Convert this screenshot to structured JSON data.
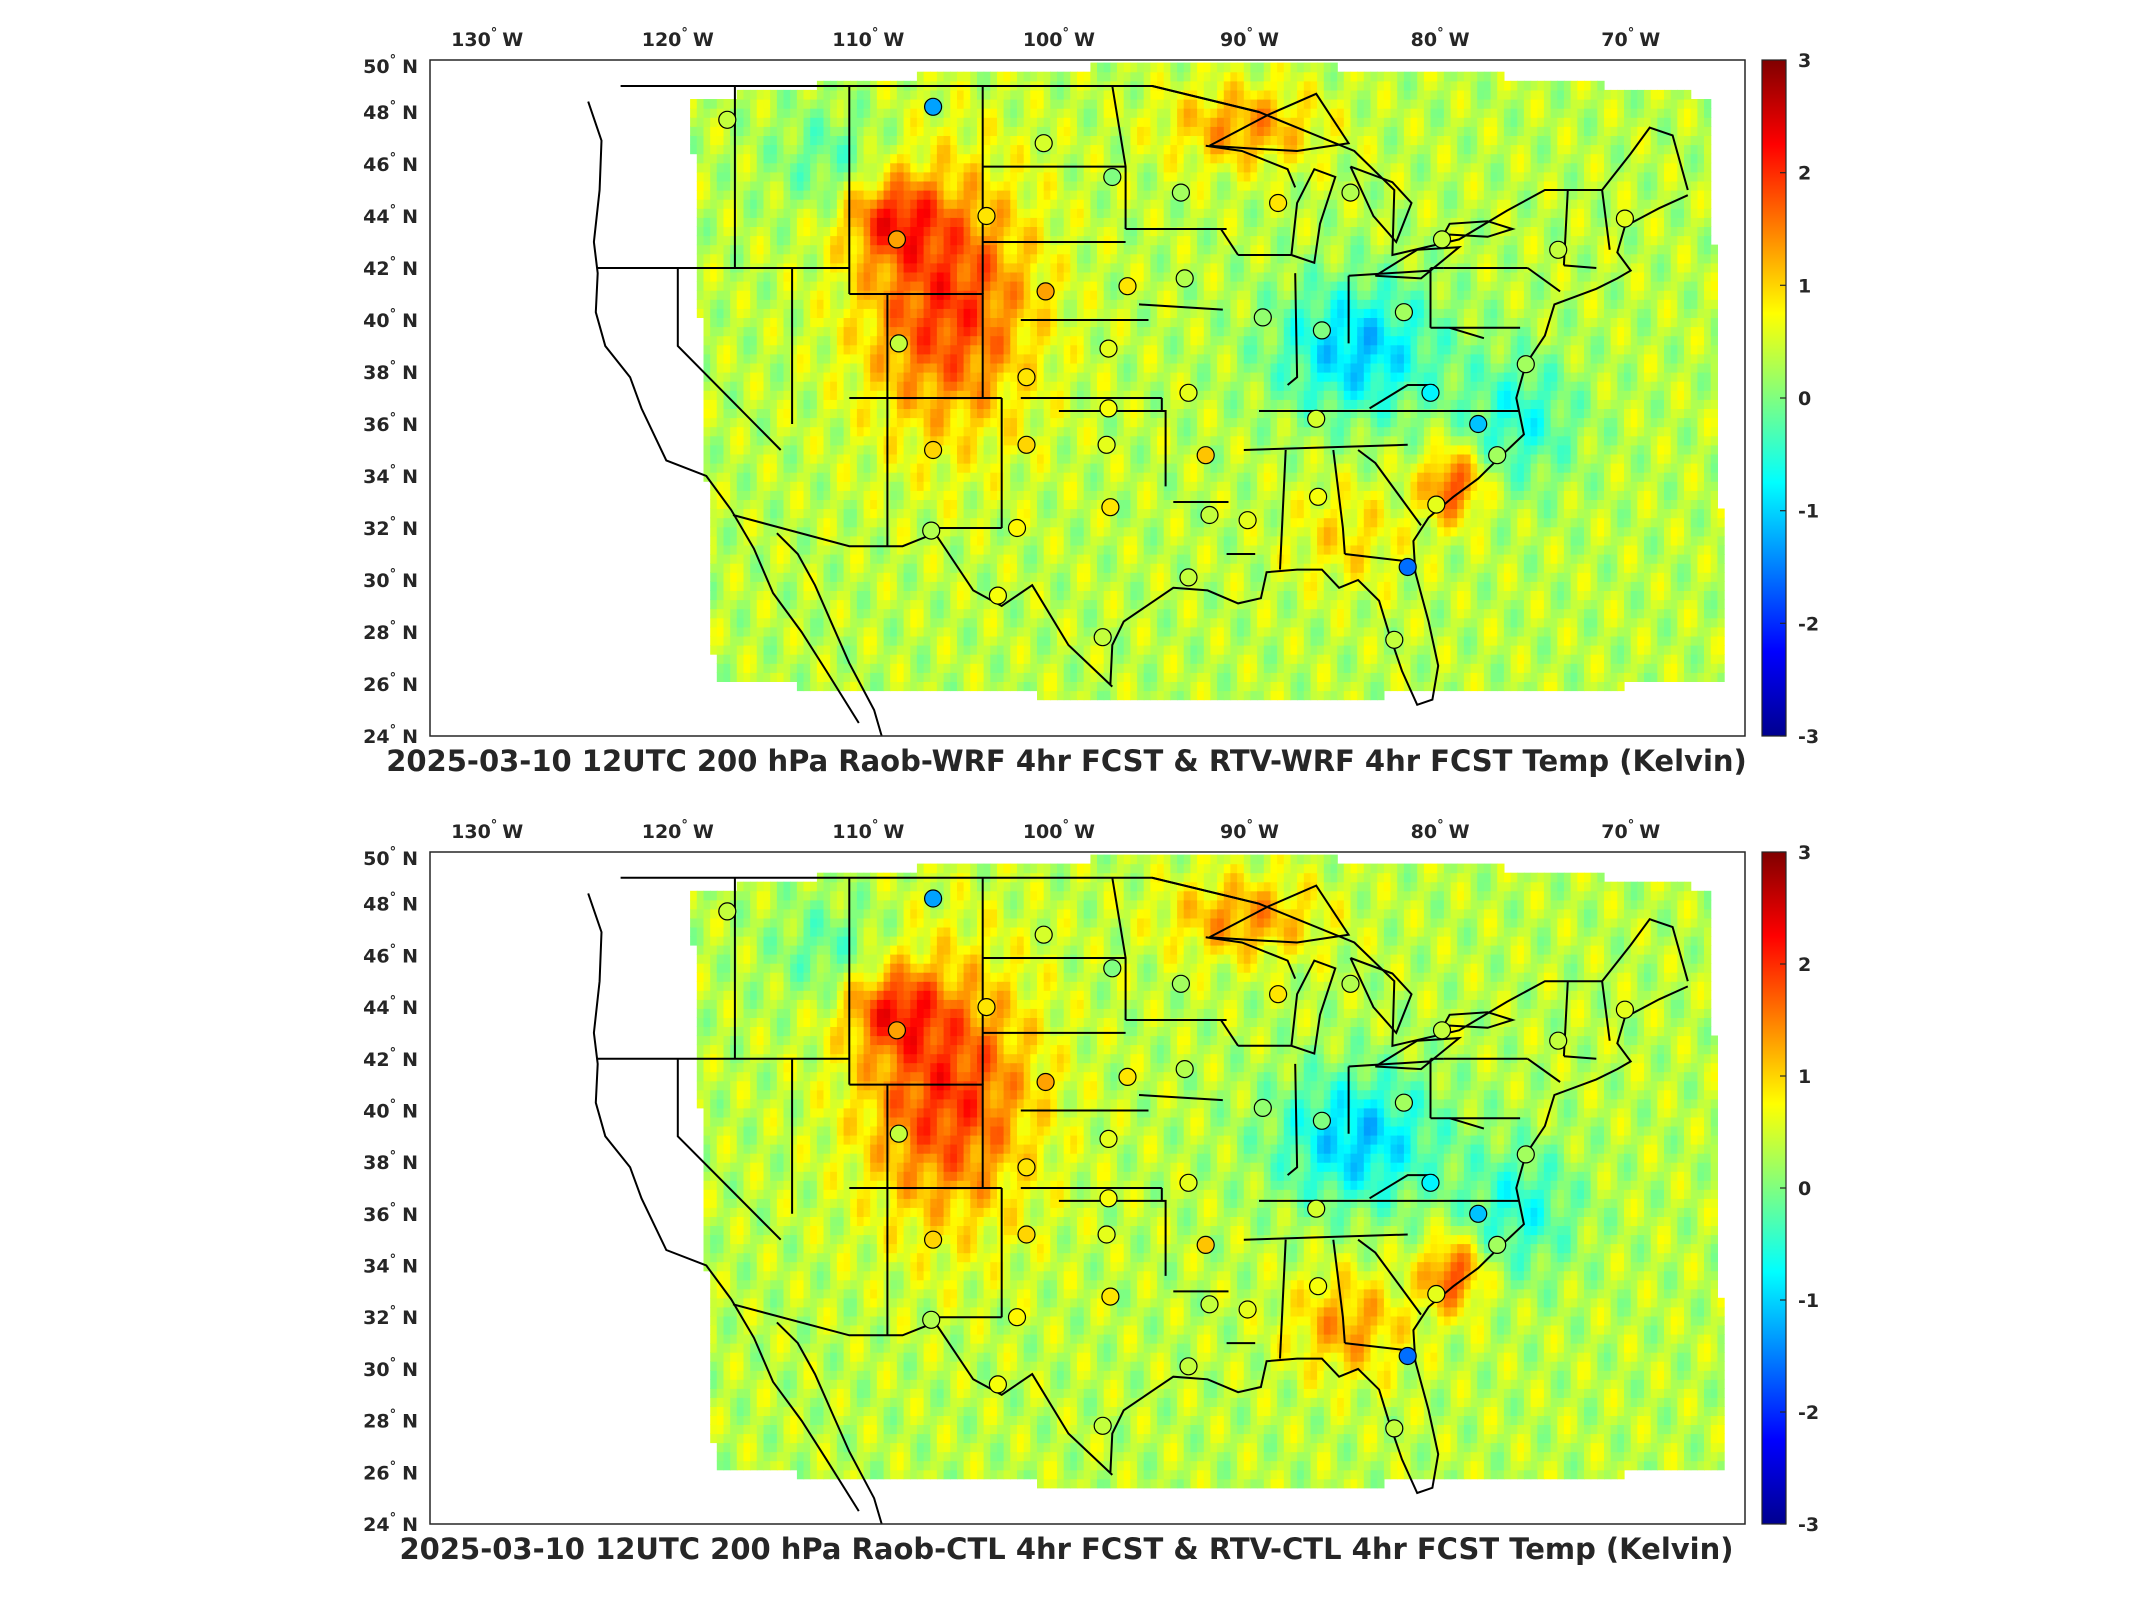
{
  "figure": {
    "panels": [
      {
        "title": "2025-03-10 12UTC 200 hPa Raob-WRF 4hr FCST & RTV-WRF 4hr FCST Temp (Kelvin)",
        "stations": [
          {
            "lon": -117.4,
            "lat": 47.7,
            "v": 0.4
          },
          {
            "lon": -106.6,
            "lat": 48.2,
            "v": -1.3
          },
          {
            "lon": -100.8,
            "lat": 46.8,
            "v": 0.5
          },
          {
            "lon": -97.2,
            "lat": 45.5,
            "v": 0.0
          },
          {
            "lon": -93.6,
            "lat": 44.9,
            "v": 0.2
          },
          {
            "lon": -88.5,
            "lat": 44.5,
            "v": 0.9
          },
          {
            "lon": -84.7,
            "lat": 44.9,
            "v": 0.3
          },
          {
            "lon": -79.9,
            "lat": 43.1,
            "v": 0.4
          },
          {
            "lon": -70.3,
            "lat": 43.9,
            "v": 0.6
          },
          {
            "lon": -108.5,
            "lat": 43.1,
            "v": 1.3
          },
          {
            "lon": -103.8,
            "lat": 44.0,
            "v": 0.9
          },
          {
            "lon": -100.7,
            "lat": 41.1,
            "v": 1.3
          },
          {
            "lon": -96.4,
            "lat": 41.3,
            "v": 0.9
          },
          {
            "lon": -93.4,
            "lat": 41.6,
            "v": 0.3
          },
          {
            "lon": -89.3,
            "lat": 40.1,
            "v": 0.1
          },
          {
            "lon": -86.2,
            "lat": 39.6,
            "v": 0.0
          },
          {
            "lon": -81.9,
            "lat": 40.3,
            "v": 0.2
          },
          {
            "lon": -73.8,
            "lat": 42.7,
            "v": 0.4
          },
          {
            "lon": -108.4,
            "lat": 39.1,
            "v": 0.4
          },
          {
            "lon": -101.7,
            "lat": 37.8,
            "v": 0.9
          },
          {
            "lon": -97.4,
            "lat": 38.9,
            "v": 0.6
          },
          {
            "lon": -93.2,
            "lat": 37.2,
            "v": 0.6
          },
          {
            "lon": -86.5,
            "lat": 36.2,
            "v": 0.5
          },
          {
            "lon": -80.5,
            "lat": 37.2,
            "v": -0.8
          },
          {
            "lon": -78.0,
            "lat": 36.0,
            "v": -1.1
          },
          {
            "lon": -75.5,
            "lat": 38.3,
            "v": 0.2
          },
          {
            "lon": -106.6,
            "lat": 35.0,
            "v": 1.0
          },
          {
            "lon": -101.7,
            "lat": 35.2,
            "v": 1.0
          },
          {
            "lon": -97.4,
            "lat": 36.6,
            "v": 0.7
          },
          {
            "lon": -97.5,
            "lat": 35.2,
            "v": 0.6
          },
          {
            "lon": -92.3,
            "lat": 34.8,
            "v": 1.1
          },
          {
            "lon": -106.7,
            "lat": 31.9,
            "v": 0.3
          },
          {
            "lon": -102.2,
            "lat": 32.0,
            "v": 0.8
          },
          {
            "lon": -97.3,
            "lat": 32.8,
            "v": 0.9
          },
          {
            "lon": -92.1,
            "lat": 32.5,
            "v": 0.4
          },
          {
            "lon": -90.1,
            "lat": 32.3,
            "v": 0.6
          },
          {
            "lon": -86.4,
            "lat": 33.2,
            "v": 0.7
          },
          {
            "lon": -80.2,
            "lat": 32.9,
            "v": 0.6
          },
          {
            "lon": -77.0,
            "lat": 34.8,
            "v": 0.2
          },
          {
            "lon": -103.2,
            "lat": 29.4,
            "v": 0.7
          },
          {
            "lon": -97.7,
            "lat": 27.8,
            "v": 0.4
          },
          {
            "lon": -93.2,
            "lat": 30.1,
            "v": 0.4
          },
          {
            "lon": -81.7,
            "lat": 30.5,
            "v": -1.6
          },
          {
            "lon": -82.4,
            "lat": 27.7,
            "v": 0.4
          }
        ]
      },
      {
        "title": "2025-03-10 12UTC 200 hPa Raob-CTL 4hr FCST & RTV-CTL 4hr FCST Temp (Kelvin)",
        "stations": [
          {
            "lon": -117.4,
            "lat": 47.7,
            "v": 0.4
          },
          {
            "lon": -106.6,
            "lat": 48.2,
            "v": -1.3
          },
          {
            "lon": -100.8,
            "lat": 46.8,
            "v": 0.5
          },
          {
            "lon": -97.2,
            "lat": 45.5,
            "v": 0.0
          },
          {
            "lon": -93.6,
            "lat": 44.9,
            "v": 0.2
          },
          {
            "lon": -88.5,
            "lat": 44.5,
            "v": 0.9
          },
          {
            "lon": -84.7,
            "lat": 44.9,
            "v": 0.3
          },
          {
            "lon": -79.9,
            "lat": 43.1,
            "v": 0.4
          },
          {
            "lon": -70.3,
            "lat": 43.9,
            "v": 0.6
          },
          {
            "lon": -108.5,
            "lat": 43.1,
            "v": 1.3
          },
          {
            "lon": -103.8,
            "lat": 44.0,
            "v": 0.9
          },
          {
            "lon": -100.7,
            "lat": 41.1,
            "v": 1.3
          },
          {
            "lon": -96.4,
            "lat": 41.3,
            "v": 0.9
          },
          {
            "lon": -93.4,
            "lat": 41.6,
            "v": 0.3
          },
          {
            "lon": -89.3,
            "lat": 40.1,
            "v": 0.1
          },
          {
            "lon": -86.2,
            "lat": 39.6,
            "v": 0.0
          },
          {
            "lon": -81.9,
            "lat": 40.3,
            "v": 0.2
          },
          {
            "lon": -73.8,
            "lat": 42.7,
            "v": 0.4
          },
          {
            "lon": -108.4,
            "lat": 39.1,
            "v": 0.4
          },
          {
            "lon": -101.7,
            "lat": 37.8,
            "v": 0.9
          },
          {
            "lon": -97.4,
            "lat": 38.9,
            "v": 0.6
          },
          {
            "lon": -93.2,
            "lat": 37.2,
            "v": 0.6
          },
          {
            "lon": -86.5,
            "lat": 36.2,
            "v": 0.5
          },
          {
            "lon": -80.5,
            "lat": 37.2,
            "v": -0.8
          },
          {
            "lon": -78.0,
            "lat": 36.0,
            "v": -1.1
          },
          {
            "lon": -75.5,
            "lat": 38.3,
            "v": 0.2
          },
          {
            "lon": -106.6,
            "lat": 35.0,
            "v": 1.0
          },
          {
            "lon": -101.7,
            "lat": 35.2,
            "v": 1.0
          },
          {
            "lon": -97.4,
            "lat": 36.6,
            "v": 0.7
          },
          {
            "lon": -97.5,
            "lat": 35.2,
            "v": 0.6
          },
          {
            "lon": -92.3,
            "lat": 34.8,
            "v": 1.1
          },
          {
            "lon": -106.7,
            "lat": 31.9,
            "v": 0.3
          },
          {
            "lon": -102.2,
            "lat": 32.0,
            "v": 0.8
          },
          {
            "lon": -97.3,
            "lat": 32.8,
            "v": 0.9
          },
          {
            "lon": -92.1,
            "lat": 32.5,
            "v": 0.4
          },
          {
            "lon": -90.1,
            "lat": 32.3,
            "v": 0.6
          },
          {
            "lon": -86.4,
            "lat": 33.2,
            "v": 0.7
          },
          {
            "lon": -80.2,
            "lat": 32.9,
            "v": 0.6
          },
          {
            "lon": -77.0,
            "lat": 34.8,
            "v": 0.2
          },
          {
            "lon": -103.2,
            "lat": 29.4,
            "v": 0.7
          },
          {
            "lon": -97.7,
            "lat": 27.8,
            "v": 0.4
          },
          {
            "lon": -93.2,
            "lat": 30.1,
            "v": 0.4
          },
          {
            "lon": -81.7,
            "lat": 30.5,
            "v": -1.6
          },
          {
            "lon": -82.4,
            "lat": 27.7,
            "v": 0.4
          }
        ]
      }
    ],
    "lon_ticks": [
      {
        "value": -130,
        "label": "130"
      },
      {
        "value": -120,
        "label": "120"
      },
      {
        "value": -110,
        "label": "110"
      },
      {
        "value": -100,
        "label": "100"
      },
      {
        "value": -90,
        "label": "90"
      },
      {
        "value": -80,
        "label": "80"
      },
      {
        "value": -70,
        "label": "70"
      }
    ],
    "lon_suffix": "W",
    "lat_ticks": [
      {
        "value": 50,
        "label": "50"
      },
      {
        "value": 48,
        "label": "48"
      },
      {
        "value": 46,
        "label": "46"
      },
      {
        "value": 44,
        "label": "44"
      },
      {
        "value": 42,
        "label": "42"
      },
      {
        "value": 40,
        "label": "40"
      },
      {
        "value": 38,
        "label": "38"
      },
      {
        "value": 36,
        "label": "36"
      },
      {
        "value": 34,
        "label": "34"
      },
      {
        "value": 32,
        "label": "32"
      },
      {
        "value": 30,
        "label": "30"
      },
      {
        "value": 28,
        "label": "28"
      },
      {
        "value": 26,
        "label": "26"
      },
      {
        "value": 24,
        "label": "24"
      }
    ],
    "lat_suffix": "N",
    "degree_mark": "°",
    "colorbar": {
      "min": -3,
      "max": 3,
      "ticks": [
        {
          "value": 3,
          "label": "3"
        },
        {
          "value": 2,
          "label": "2"
        },
        {
          "value": 1,
          "label": "1"
        },
        {
          "value": 0,
          "label": "0"
        },
        {
          "value": -1,
          "label": "-1"
        },
        {
          "value": -2,
          "label": "-2"
        },
        {
          "value": -3,
          "label": "-3"
        }
      ],
      "colormap": [
        "#00008f",
        "#0000ff",
        "#00ffff",
        "#ffff00",
        "#ff0000",
        "#800000"
      ]
    },
    "colors": {
      "frame": "#262626",
      "coast": "#000000",
      "missing": "#ffffff"
    }
  }
}
